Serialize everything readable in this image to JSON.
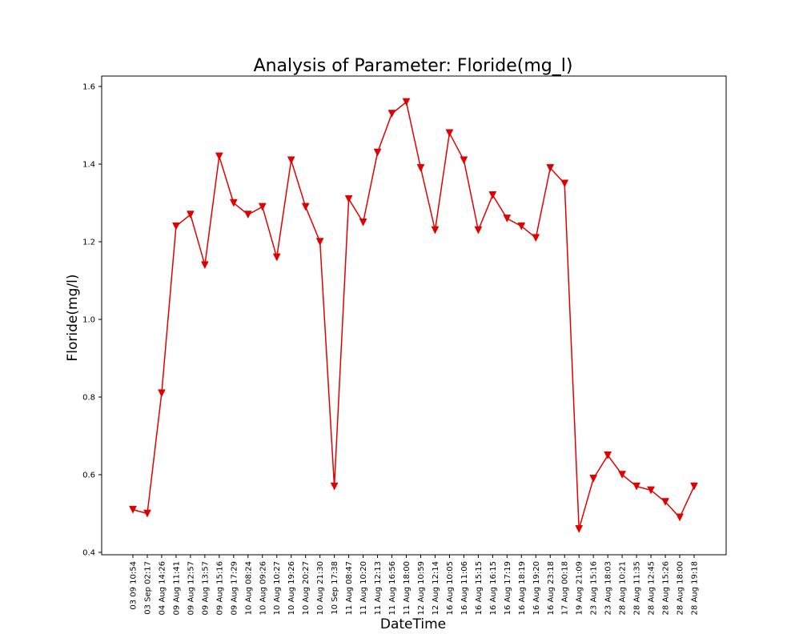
{
  "chart_data": {
    "type": "line",
    "title": "Analysis of Parameter: Floride(mg_l)",
    "xlabel": "DateTime",
    "ylabel": "Floride(mg/l)",
    "ylim": [
      0.4,
      1.6
    ],
    "yticks": [
      "0.4",
      "0.6",
      "0.8",
      "1.0",
      "1.2",
      "1.4",
      "1.6"
    ],
    "grid": false,
    "legend": "none",
    "line_color": "#e00000",
    "marker": "triangle-down",
    "categories": [
      "03 09 10:54",
      "03 Sep 02:17",
      "04 Aug 14:26",
      "09 Aug 11:41",
      "09 Aug 12:57",
      "09 Aug 13:57",
      "09 Aug 15:16",
      "09 Aug 17:29",
      "10 Aug 08:24",
      "10 Aug 09:26",
      "10 Aug 10:27",
      "10 Aug 19:26",
      "10 Aug 20:27",
      "10 Aug 21:30",
      "10 Sep 17:38",
      "11 Aug 08:47",
      "11 Aug 10:20",
      "11 Aug 12:13",
      "11 Aug 16:56",
      "11 Aug 18:00",
      "12 Aug 10:59",
      "12 Aug 12:14",
      "16 Aug 10:05",
      "16 Aug 11:06",
      "16 Aug 15:15",
      "16 Aug 16:15",
      "16 Aug 17:19",
      "16 Aug 18:19",
      "16 Aug 19:20",
      "16 Aug 23:18",
      "17 Aug 00:18",
      "19 Aug 21:09",
      "23 Aug 15:16",
      "23 Aug 18:03",
      "28 Aug 10:21",
      "28 Aug 11:35",
      "28 Aug 12:45",
      "28 Aug 15:26",
      "28 Aug 18:00",
      "28 Aug 19:18"
    ],
    "series": [
      {
        "values": [
          0.51,
          0.5,
          0.81,
          1.24,
          1.27,
          1.14,
          1.42,
          1.3,
          1.27,
          1.29,
          1.16,
          1.41,
          1.29,
          1.2,
          0.57,
          1.31,
          1.25,
          1.43,
          1.53,
          1.56,
          1.39,
          1.23,
          1.48,
          1.41,
          1.23,
          1.32,
          1.26,
          1.24,
          1.21,
          1.39,
          1.35,
          0.46,
          0.59,
          0.65,
          0.6,
          0.57,
          0.56,
          0.53,
          0.49,
          0.57
        ]
      }
    ]
  }
}
